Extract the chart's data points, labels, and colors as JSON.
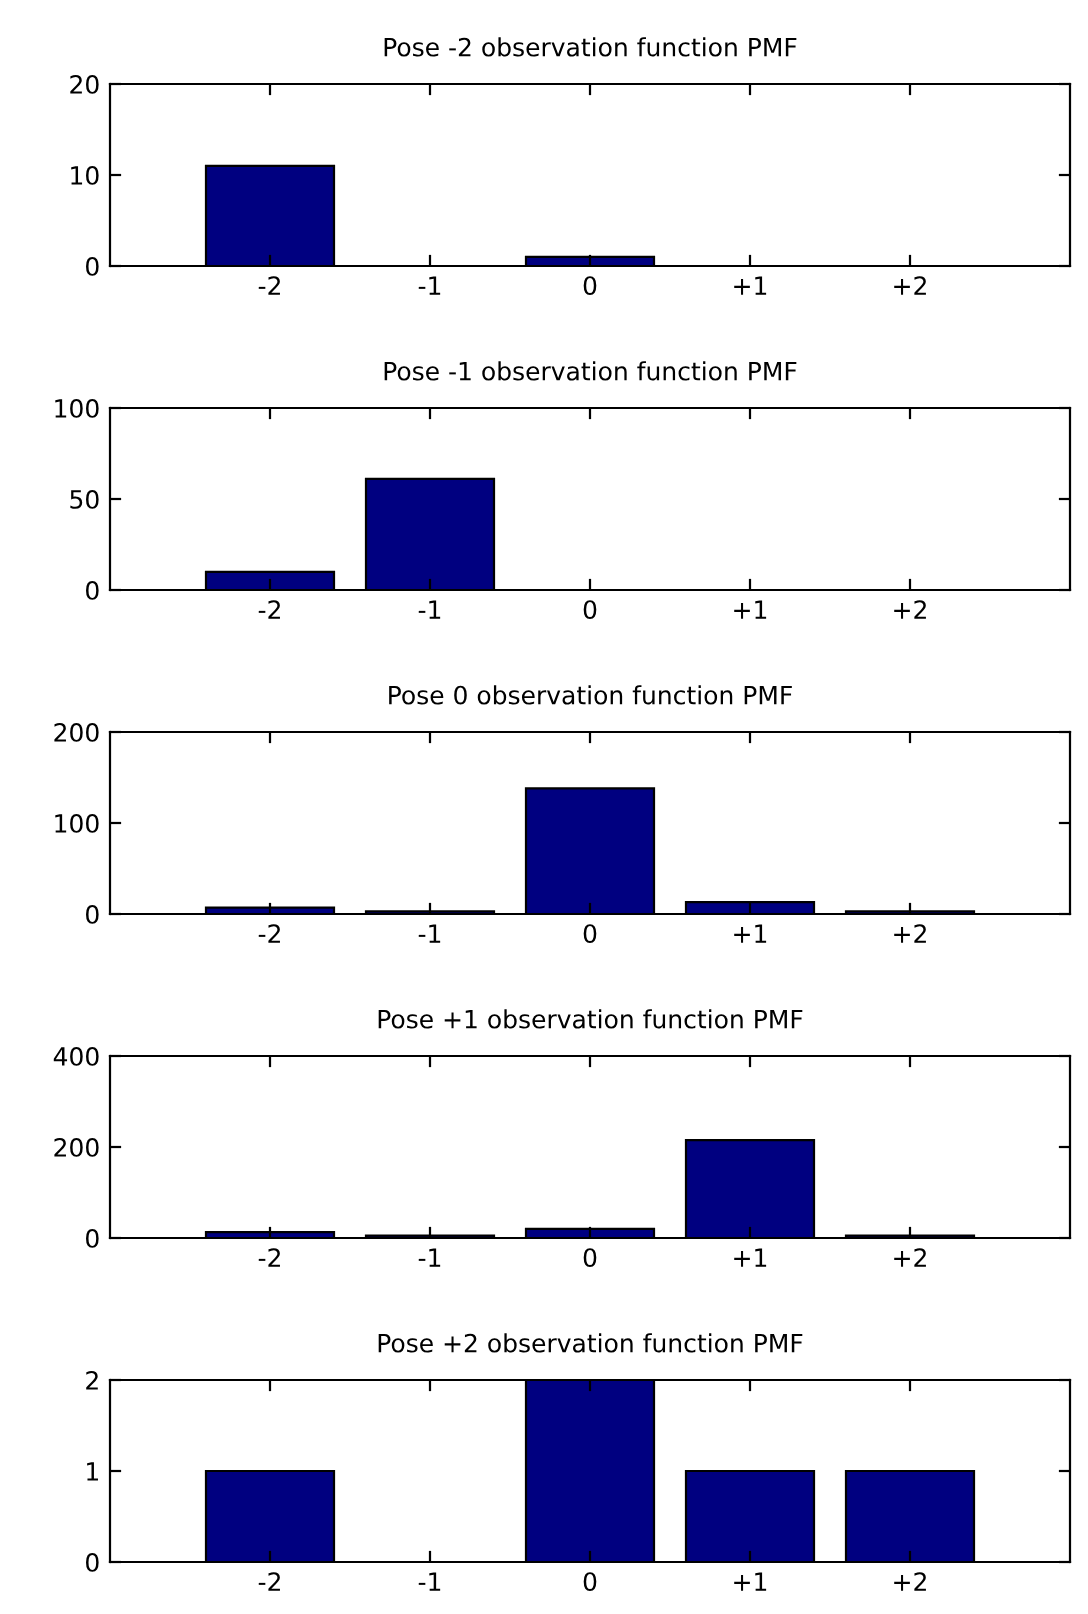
{
  "chart_data": [
    {
      "type": "bar",
      "title": "Pose -2 observation function PMF",
      "categories": [
        "-2",
        "-1",
        "0",
        "+1",
        "+2"
      ],
      "values": [
        11,
        0,
        1,
        0,
        0
      ],
      "color": "#000080",
      "ylim": [
        0,
        20
      ],
      "yticks": [
        0,
        10,
        20
      ],
      "grid": false
    },
    {
      "type": "bar",
      "title": "Pose -1 observation function PMF",
      "categories": [
        "-2",
        "-1",
        "0",
        "+1",
        "+2"
      ],
      "values": [
        10,
        61,
        0,
        0,
        0
      ],
      "color": "#000080",
      "ylim": [
        0,
        100
      ],
      "yticks": [
        0,
        50,
        100
      ],
      "grid": false
    },
    {
      "type": "bar",
      "title": "Pose 0 observation function PMF",
      "categories": [
        "-2",
        "-1",
        "0",
        "+1",
        "+2"
      ],
      "values": [
        7,
        3,
        138,
        13,
        3
      ],
      "color": "#000080",
      "ylim": [
        0,
        200
      ],
      "yticks": [
        0,
        100,
        200
      ],
      "grid": false
    },
    {
      "type": "bar",
      "title": "Pose +1 observation function PMF",
      "categories": [
        "-2",
        "-1",
        "0",
        "+1",
        "+2"
      ],
      "values": [
        13,
        5,
        20,
        215,
        5
      ],
      "color": "#000080",
      "ylim": [
        0,
        400
      ],
      "yticks": [
        0,
        200,
        400
      ],
      "grid": false
    },
    {
      "type": "bar",
      "title": "Pose +2 observation function PMF",
      "categories": [
        "-2",
        "-1",
        "0",
        "+1",
        "+2"
      ],
      "values": [
        1,
        0,
        2,
        1,
        1
      ],
      "color": "#000080",
      "ylim": [
        0,
        2
      ],
      "yticks": [
        0,
        1,
        2
      ],
      "grid": false
    }
  ]
}
